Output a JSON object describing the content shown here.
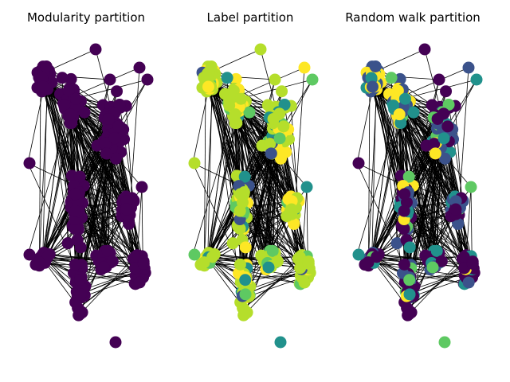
{
  "panels": [
    {
      "title": "Modularity partition",
      "colormap": "modularity"
    },
    {
      "title": "Label partition",
      "colormap": "label"
    },
    {
      "title": "Random walk partition",
      "colormap": "randomwalk"
    }
  ],
  "palette": {
    "node_dark_purple": "#440154",
    "node_indigo": "#3b528b",
    "node_teal": "#21918c",
    "node_green": "#5ec962",
    "node_lime": "#b5de2b",
    "node_yellow": "#fde725",
    "edge": "#000000",
    "background": "#ffffff"
  }
}
